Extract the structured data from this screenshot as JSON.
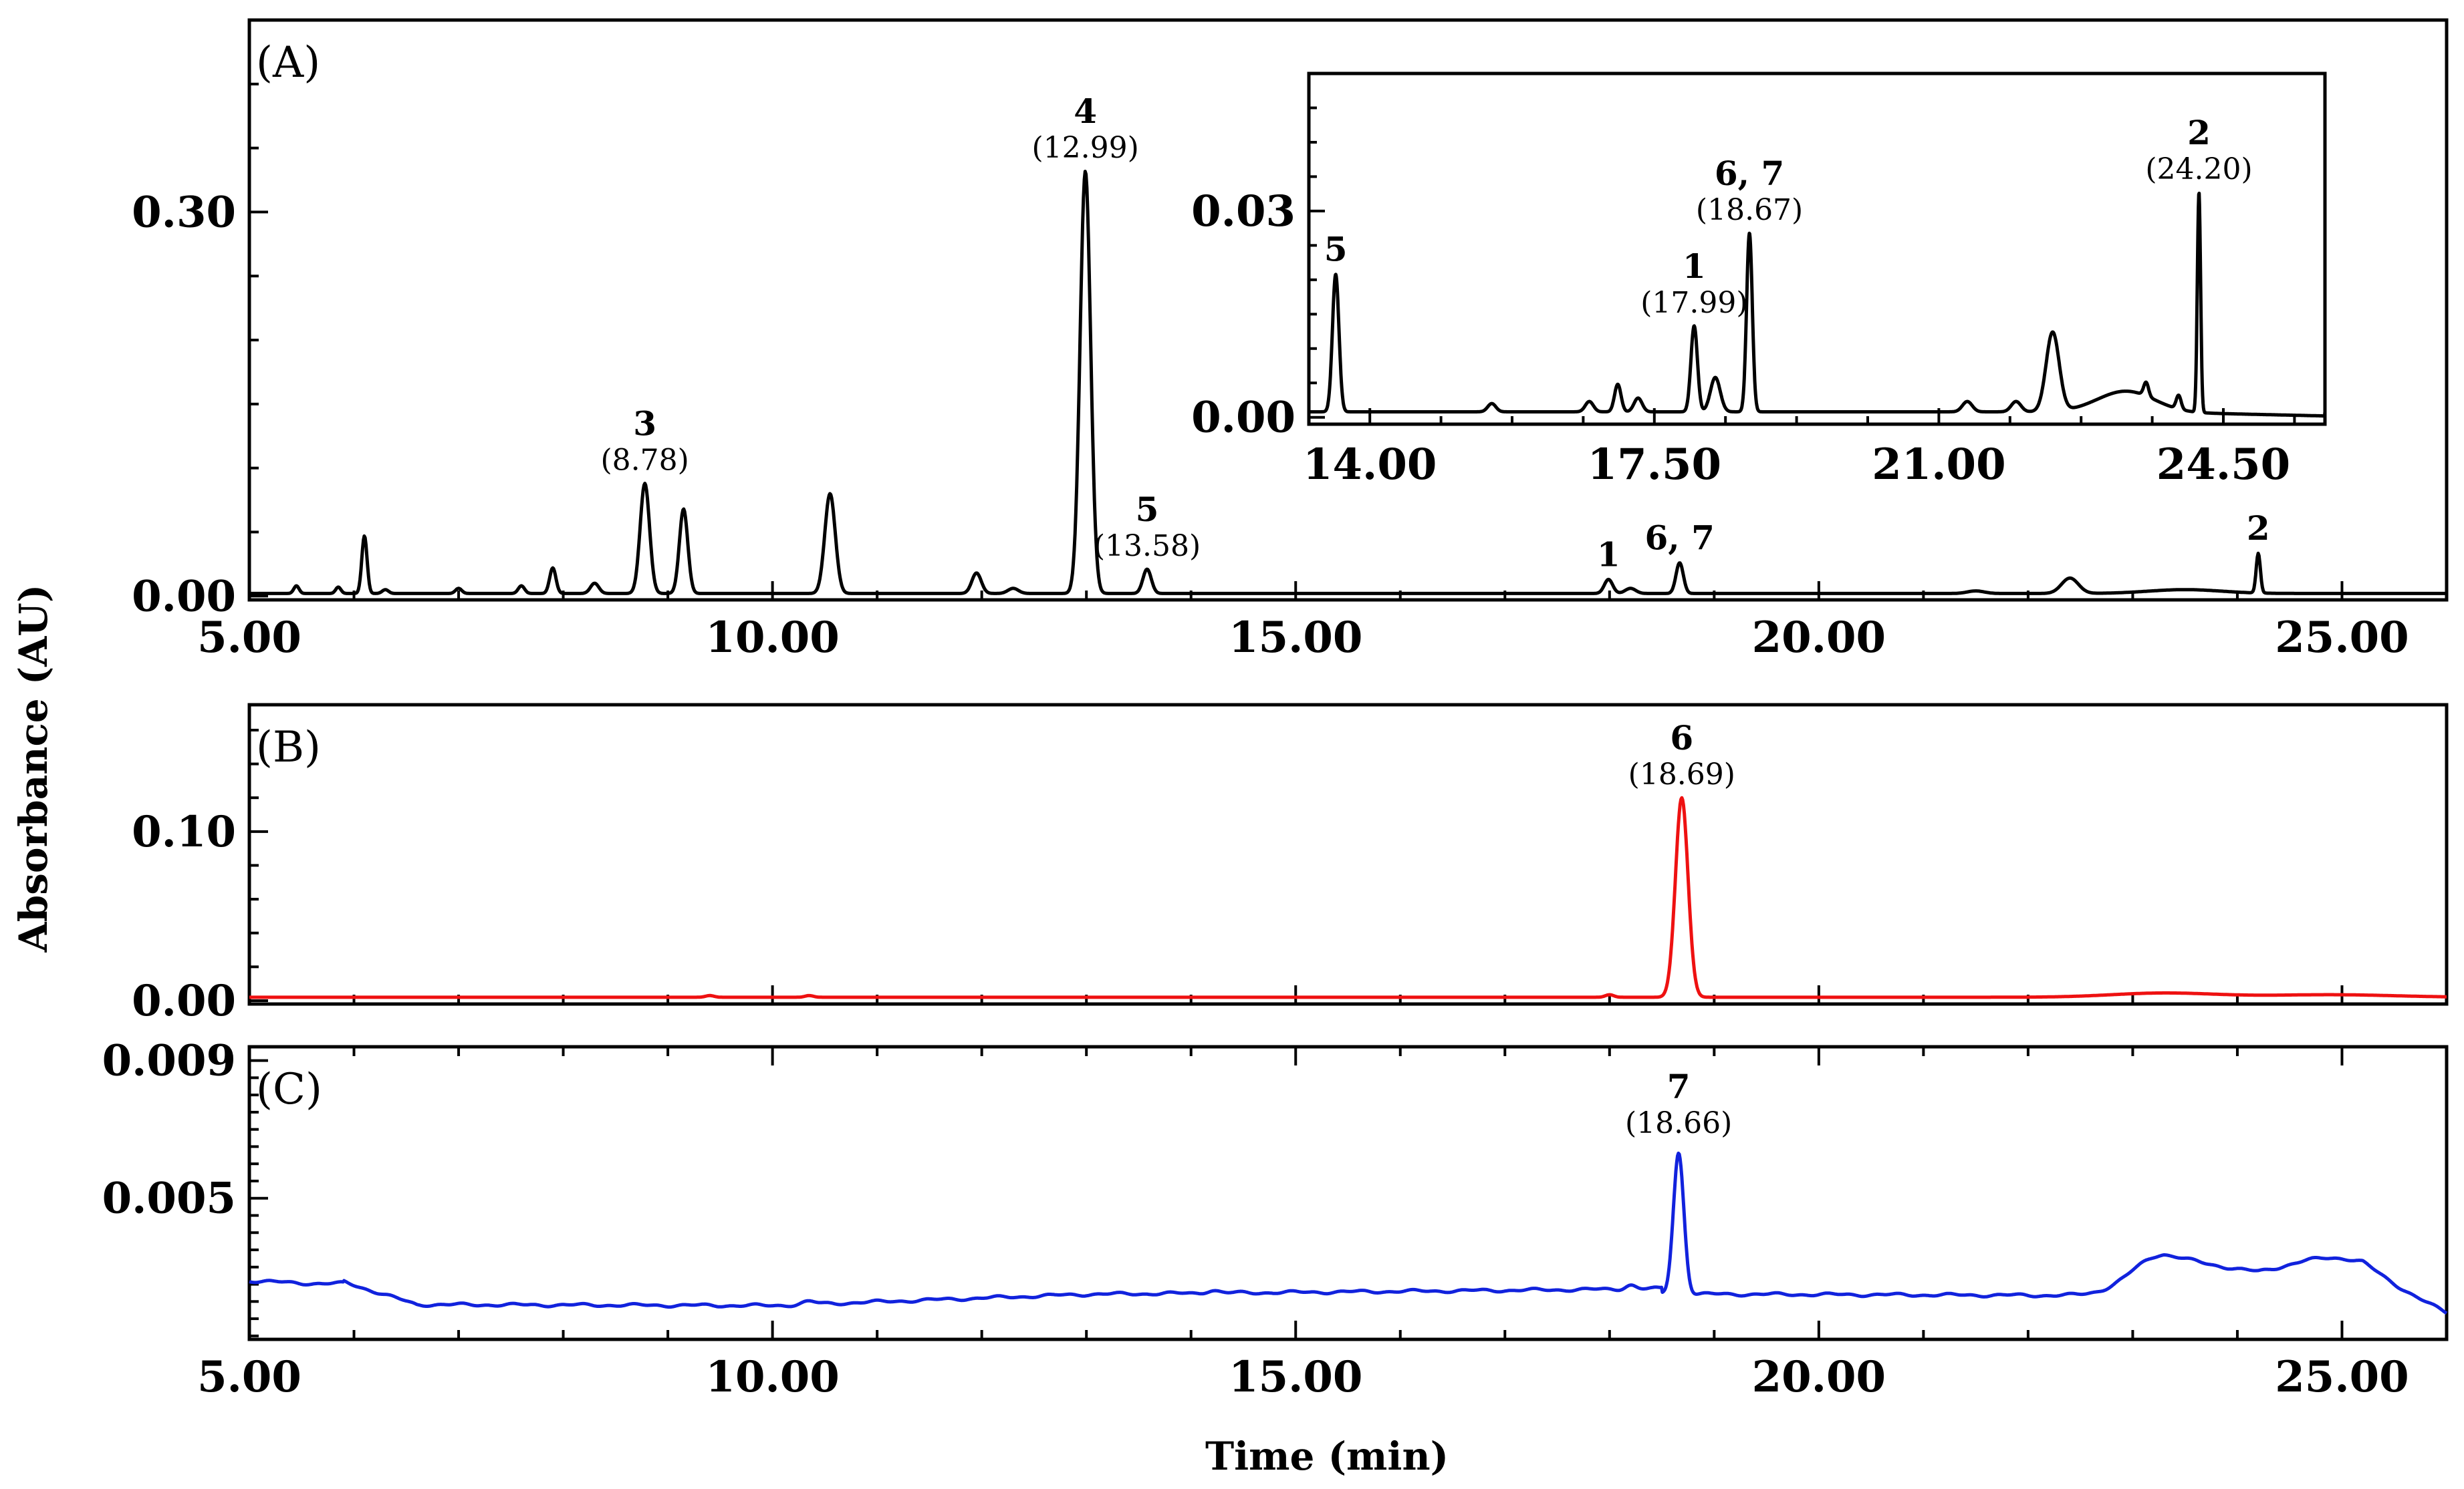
{
  "chart_data": {
    "type": "line",
    "x_axis_title": "Time (min)",
    "y_axis_title": "Absorbance (AU)",
    "panels": [
      {
        "id": "A",
        "label": "(A)",
        "color": "#000000",
        "xlim": [
          5.0,
          26.0
        ],
        "ylim": [
          -0.003,
          0.45
        ],
        "xticks": [
          "5.00",
          "10.00",
          "15.00",
          "20.00",
          "25.00"
        ],
        "xtick_values": [
          5,
          10,
          15,
          20,
          25
        ],
        "yticks": [
          "0.00",
          "0.30"
        ],
        "ytick_values": [
          0.0,
          0.3
        ],
        "baseline": 0.002,
        "peaks": [
          {
            "t": 5.45,
            "h": 0.006,
            "w": 0.025
          },
          {
            "t": 5.85,
            "h": 0.005,
            "w": 0.025
          },
          {
            "t": 6.1,
            "h": 0.045,
            "w": 0.025
          },
          {
            "t": 6.3,
            "h": 0.003,
            "w": 0.03
          },
          {
            "t": 7.0,
            "h": 0.004,
            "w": 0.03
          },
          {
            "t": 7.6,
            "h": 0.006,
            "w": 0.03
          },
          {
            "t": 7.9,
            "h": 0.02,
            "w": 0.03
          },
          {
            "t": 8.3,
            "h": 0.008,
            "w": 0.04
          },
          {
            "t": 8.78,
            "h": 0.086,
            "w": 0.045
          },
          {
            "t": 9.15,
            "h": 0.066,
            "w": 0.04
          },
          {
            "t": 10.55,
            "h": 0.078,
            "w": 0.05
          },
          {
            "t": 11.95,
            "h": 0.016,
            "w": 0.045
          },
          {
            "t": 12.3,
            "h": 0.004,
            "w": 0.05
          },
          {
            "t": 12.99,
            "h": 0.33,
            "w": 0.05
          },
          {
            "t": 13.58,
            "h": 0.019,
            "w": 0.04
          },
          {
            "t": 17.99,
            "h": 0.011,
            "w": 0.04
          },
          {
            "t": 18.2,
            "h": 0.004,
            "w": 0.05
          },
          {
            "t": 18.67,
            "h": 0.024,
            "w": 0.035
          },
          {
            "t": 21.5,
            "h": 0.002,
            "w": 0.08
          },
          {
            "t": 22.4,
            "h": 0.012,
            "w": 0.08
          },
          {
            "t": 23.5,
            "h": 0.003,
            "w": 0.35
          },
          {
            "t": 24.2,
            "h": 0.031,
            "w": 0.02
          }
        ],
        "annotations": [
          {
            "number": "3",
            "rt": "(8.78)",
            "x": 8.78
          },
          {
            "number": "4",
            "rt": "(12.99)",
            "x": 12.99
          },
          {
            "number": "5",
            "rt": "(13.58)",
            "x": 13.58
          },
          {
            "number": "1",
            "rt": "",
            "x": 17.99
          },
          {
            "number": "6, 7",
            "rt": "",
            "x": 18.67
          },
          {
            "number": "2",
            "rt": "",
            "x": 24.2
          }
        ],
        "inset": {
          "xlim": [
            13.25,
            25.75
          ],
          "ylim": [
            -0.001,
            0.05
          ],
          "xticks": [
            "14.00",
            "17.50",
            "21.00",
            "24.50"
          ],
          "xtick_values": [
            14.0,
            17.5,
            21.0,
            24.5
          ],
          "yticks": [
            "0.00",
            "0.03"
          ],
          "ytick_values": [
            0.0,
            0.03
          ],
          "peaks": [
            {
              "t": 13.58,
              "h": 0.02,
              "w": 0.04
            },
            {
              "t": 15.5,
              "h": 0.0012,
              "w": 0.05
            },
            {
              "t": 16.7,
              "h": 0.0015,
              "w": 0.05
            },
            {
              "t": 17.05,
              "h": 0.004,
              "w": 0.04
            },
            {
              "t": 17.3,
              "h": 0.002,
              "w": 0.05
            },
            {
              "t": 17.99,
              "h": 0.0125,
              "w": 0.04
            },
            {
              "t": 18.25,
              "h": 0.005,
              "w": 0.06
            },
            {
              "t": 18.67,
              "h": 0.026,
              "w": 0.035
            },
            {
              "t": 21.35,
              "h": 0.0015,
              "w": 0.06
            },
            {
              "t": 21.95,
              "h": 0.0015,
              "w": 0.06
            },
            {
              "t": 22.4,
              "h": 0.0115,
              "w": 0.08
            },
            {
              "t": 23.3,
              "h": 0.003,
              "w": 0.35
            },
            {
              "t": 23.55,
              "h": 0.002,
              "w": 0.03
            },
            {
              "t": 23.95,
              "h": 0.002,
              "w": 0.03
            },
            {
              "t": 24.2,
              "h": 0.032,
              "w": 0.02
            }
          ],
          "annotations": [
            {
              "number": "5",
              "rt": "",
              "x": 13.58
            },
            {
              "number": "1",
              "rt": "(17.99)",
              "x": 17.99
            },
            {
              "number": "6, 7",
              "rt": "(18.67)",
              "x": 18.67
            },
            {
              "number": "2",
              "rt": "(24.20)",
              "x": 24.2
            }
          ]
        }
      },
      {
        "id": "B",
        "label": "(B)",
        "color": "#ee1111",
        "xlim": [
          5.0,
          26.0
        ],
        "ylim": [
          -0.002,
          0.175
        ],
        "xticks": [
          "5.00",
          "10.00",
          "15.00",
          "20.00",
          "25.00"
        ],
        "xtick_values": [
          5,
          10,
          15,
          20,
          25
        ],
        "yticks": [
          "0.00",
          "0.10"
        ],
        "ytick_values": [
          0.0,
          0.1
        ],
        "baseline": 0.002,
        "peaks": [
          {
            "t": 9.4,
            "h": 0.001,
            "w": 0.04
          },
          {
            "t": 10.35,
            "h": 0.001,
            "w": 0.04
          },
          {
            "t": 18.0,
            "h": 0.0015,
            "w": 0.04
          },
          {
            "t": 18.69,
            "h": 0.118,
            "w": 0.06
          },
          {
            "t": 23.3,
            "h": 0.0025,
            "w": 0.5
          },
          {
            "t": 24.9,
            "h": 0.0015,
            "w": 0.6
          }
        ],
        "annotations": [
          {
            "number": "6",
            "rt": "(18.69)",
            "x": 18.69
          }
        ]
      },
      {
        "id": "C",
        "label": "(C)",
        "color": "#1122dd",
        "xlim": [
          5.0,
          26.0
        ],
        "ylim": [
          0.0009,
          0.0094
        ],
        "xticks": [
          "5.00",
          "10.00",
          "15.00",
          "20.00",
          "25.00"
        ],
        "xtick_values": [
          5,
          10,
          15,
          20,
          25
        ],
        "yticks": [
          "0.005",
          "0.009"
        ],
        "ytick_values": [
          0.005,
          0.009
        ],
        "annotations": [
          {
            "number": "7",
            "rt": "(18.66)",
            "x": 18.66
          }
        ]
      }
    ]
  }
}
